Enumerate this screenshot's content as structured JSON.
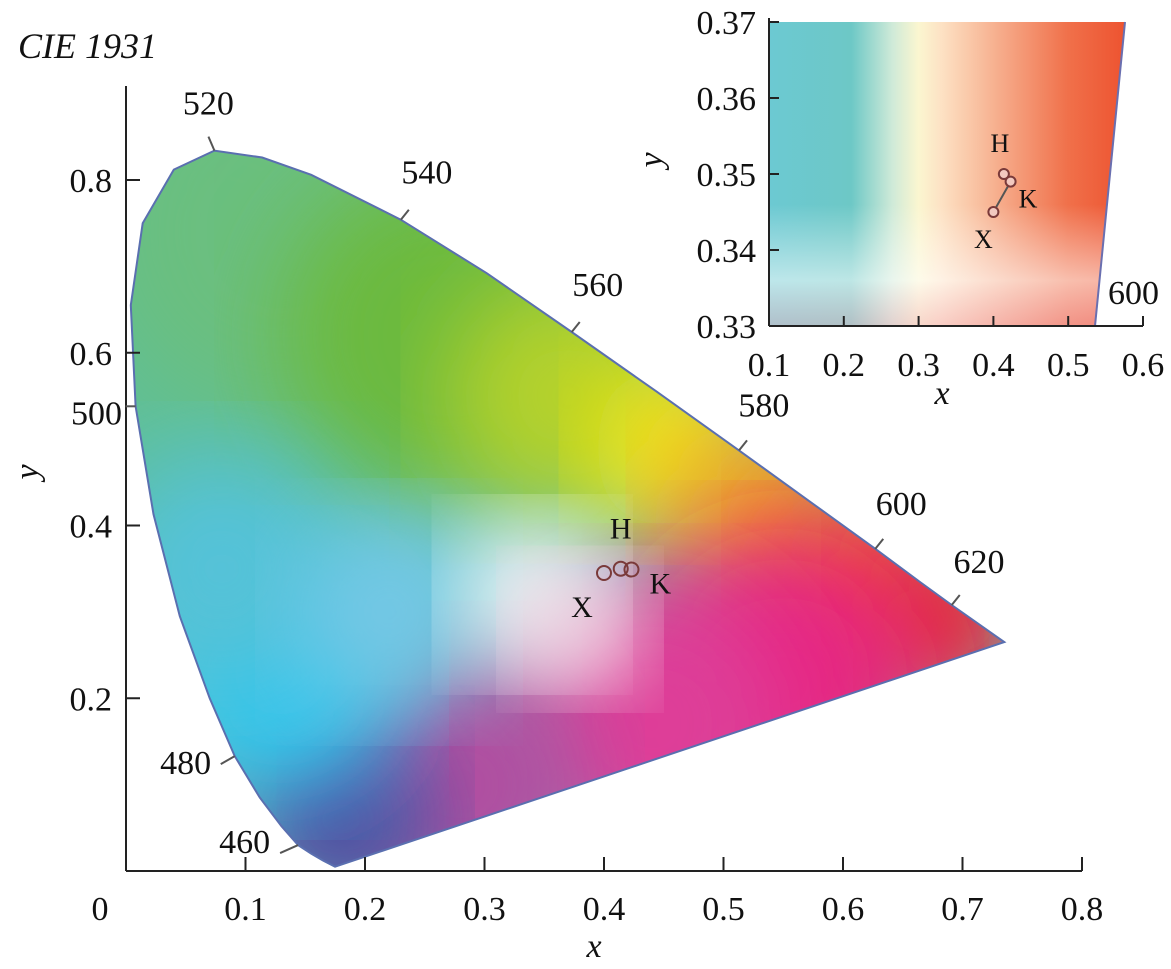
{
  "title": "CIE 1931",
  "chart_data": [
    {
      "type": "scatter",
      "title": "CIE 1931",
      "xlabel": "x",
      "ylabel": "y",
      "xlim": [
        0,
        0.8
      ],
      "ylim": [
        0,
        0.9
      ],
      "x_ticks": [
        "0",
        "0.1",
        "0.2",
        "0.3",
        "0.4",
        "0.5",
        "0.6",
        "0.7",
        "0.8"
      ],
      "y_ticks": [
        "0.2",
        "0.4",
        "0.6",
        "0.8"
      ],
      "grid": false,
      "spectral_locus": [
        {
          "wavelength": "460",
          "x": 0.144,
          "y": 0.03
        },
        {
          "wavelength": "480",
          "x": 0.091,
          "y": 0.133
        },
        {
          "wavelength": "500",
          "x": 0.008,
          "y": 0.538
        },
        {
          "wavelength": "520",
          "x": 0.074,
          "y": 0.834
        },
        {
          "wavelength": "540",
          "x": 0.23,
          "y": 0.754
        },
        {
          "wavelength": "560",
          "x": 0.373,
          "y": 0.624
        },
        {
          "wavelength": "580",
          "x": 0.513,
          "y": 0.487
        },
        {
          "wavelength": "600",
          "x": 0.627,
          "y": 0.373
        },
        {
          "wavelength": "620",
          "x": 0.691,
          "y": 0.308
        }
      ],
      "points": [
        {
          "label": "H",
          "x": 0.414,
          "y": 0.35
        },
        {
          "label": "K",
          "x": 0.423,
          "y": 0.349
        },
        {
          "label": "X",
          "x": 0.4,
          "y": 0.345
        }
      ]
    },
    {
      "type": "scatter",
      "title": "",
      "xlabel": "x",
      "ylabel": "y",
      "xlim": [
        0.1,
        0.6
      ],
      "ylim": [
        0.33,
        0.37
      ],
      "x_ticks": [
        "0.1",
        "0.2",
        "0.3",
        "0.4",
        "0.5",
        "0.6"
      ],
      "y_ticks": [
        "0.33",
        "0.34",
        "0.35",
        "0.36",
        "0.37"
      ],
      "grid": false,
      "legend": "none",
      "locus_label": {
        "wavelength": "600"
      },
      "points": [
        {
          "label": "H",
          "x": 0.414,
          "y": 0.35
        },
        {
          "label": "K",
          "x": 0.423,
          "y": 0.349
        },
        {
          "label": "X",
          "x": 0.4,
          "y": 0.345
        }
      ]
    }
  ]
}
